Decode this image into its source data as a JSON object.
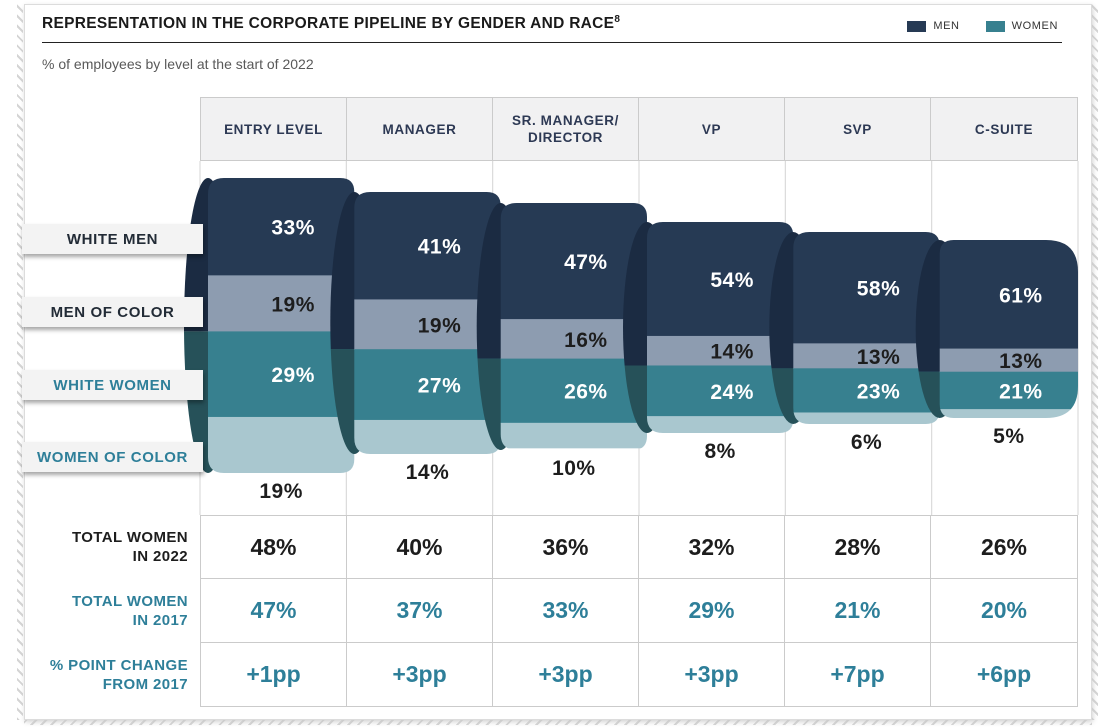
{
  "page": {
    "title": "REPRESENTATION IN THE CORPORATE PIPELINE BY GENDER AND RACE",
    "title_footnote": "8",
    "subtitle": "% of employees by level at the start of 2022"
  },
  "legend": [
    {
      "label": "MEN",
      "color": "#263a54"
    },
    {
      "label": "WOMEN",
      "color": "#37808f"
    }
  ],
  "chart_data": {
    "type": "bar",
    "subtype": "stacked-pipeline-funnel",
    "unit": "%",
    "categories": [
      "ENTRY LEVEL",
      "MANAGER",
      "SR. MANAGER/DIRECTOR",
      "VP",
      "SVP",
      "C-SUITE"
    ],
    "category_lines": [
      [
        "ENTRY LEVEL"
      ],
      [
        "MANAGER"
      ],
      [
        "SR. MANAGER/",
        "DIRECTOR"
      ],
      [
        "VP"
      ],
      [
        "SVP"
      ],
      [
        "C-SUITE"
      ]
    ],
    "series": [
      {
        "name": "WHITE MEN",
        "group": "men",
        "color": "#263a54",
        "value_text_color": "#ffffff",
        "label_color": "#222b36",
        "values": [
          33,
          41,
          47,
          54,
          58,
          61
        ]
      },
      {
        "name": "MEN OF COLOR",
        "group": "men",
        "color": "#8d9cb0",
        "value_text_color": "#1d1d1d",
        "label_color": "#222b36",
        "values": [
          19,
          19,
          16,
          14,
          13,
          13
        ]
      },
      {
        "name": "WHITE WOMEN",
        "group": "women",
        "color": "#37808f",
        "value_text_color": "#ffffff",
        "label_color": "#2e7f99",
        "values": [
          29,
          27,
          26,
          24,
          23,
          21
        ]
      },
      {
        "name": "WOMEN OF COLOR",
        "group": "women",
        "color": "#a9c7cf",
        "value_text_color": "#1d1d1d",
        "label_color": "#2e7f99",
        "values": [
          19,
          14,
          10,
          8,
          6,
          5
        ]
      }
    ],
    "cap_colors": {
      "men": "#1b2b42",
      "women": "#265159"
    },
    "bottom_rows": [
      {
        "label": "TOTAL WOMEN IN 2022",
        "label_lines": [
          "TOTAL WOMEN",
          "IN 2022"
        ],
        "color": "#1d1d1d",
        "values": [
          "48%",
          "40%",
          "36%",
          "32%",
          "28%",
          "26%"
        ]
      },
      {
        "label": "TOTAL WOMEN IN 2017",
        "label_lines": [
          "TOTAL WOMEN",
          "IN 2017"
        ],
        "color": "#2e7f99",
        "values": [
          "47%",
          "37%",
          "33%",
          "29%",
          "21%",
          "20%"
        ]
      },
      {
        "label": "% POINT CHANGE FROM 2017",
        "label_lines": [
          "% POINT CHANGE",
          "FROM 2017"
        ],
        "color": "#2e7f99",
        "values": [
          "+1pp",
          "+3pp",
          "+3pp",
          "+3pp",
          "+7pp",
          "+6pp"
        ]
      }
    ],
    "legend_position": "top-right",
    "grid": true
  }
}
